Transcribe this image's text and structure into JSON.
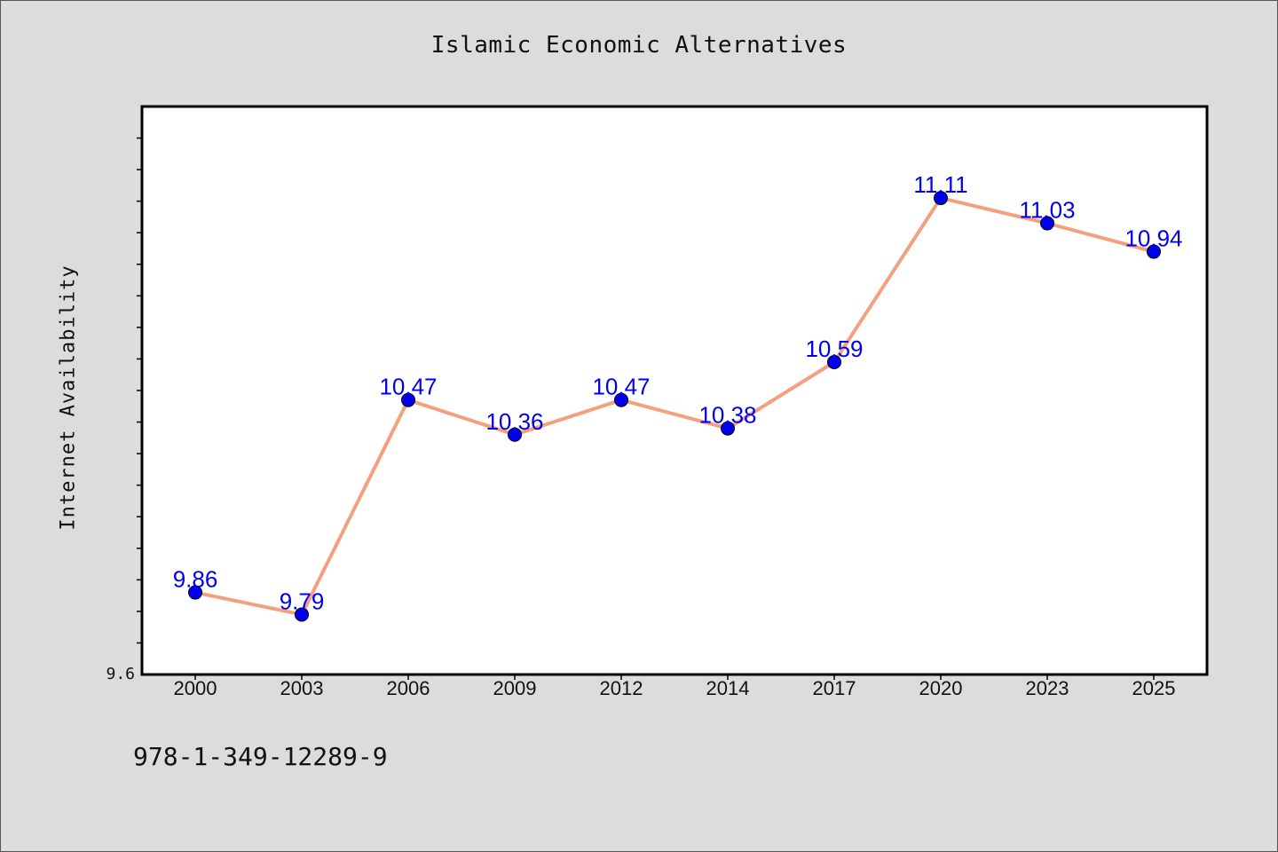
{
  "chart_data": {
    "type": "line",
    "title": "Islamic Economic Alternatives",
    "xlabel": "",
    "ylabel": "Internet Availability",
    "categories": [
      "2000",
      "2003",
      "2006",
      "2009",
      "2012",
      "2014",
      "2017",
      "2020",
      "2023",
      "2025"
    ],
    "values": [
      9.86,
      9.79,
      10.47,
      10.36,
      10.47,
      10.38,
      10.59,
      11.11,
      11.03,
      10.94
    ],
    "data_labels": [
      "9.86",
      "9.79",
      "10.47",
      "10.36",
      "10.47",
      "10.38",
      "10.59",
      "11.11",
      "11.03",
      "10.94"
    ],
    "y_tick_labels": [
      "9.6"
    ],
    "ylim": [
      9.6,
      11.4
    ],
    "grid": false,
    "legend": "none",
    "colors": {
      "line": "#f4a07e",
      "marker": "#0000ee",
      "data_label": "#0000ee",
      "plot_bg": "#ffffff",
      "page_bg": "#dcdcdc"
    }
  },
  "footnote": "978-1-349-12289-9"
}
